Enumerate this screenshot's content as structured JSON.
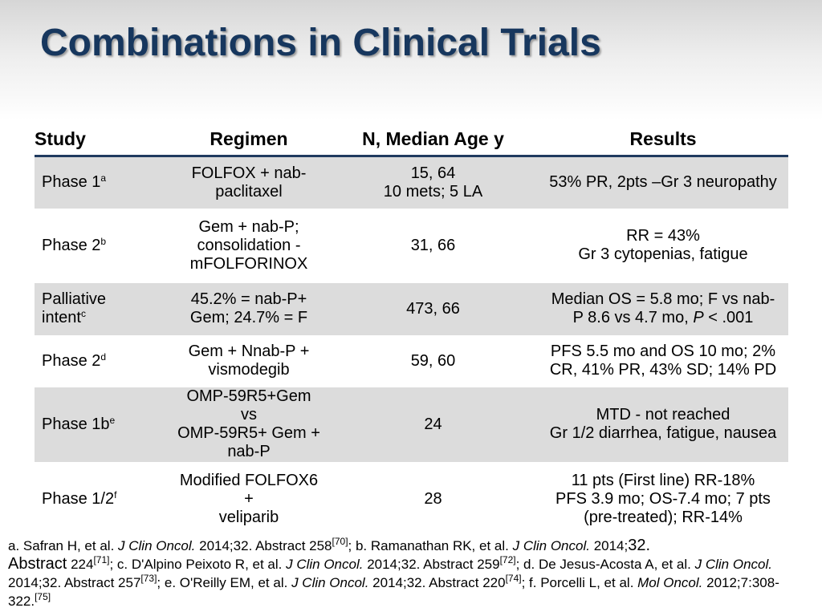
{
  "title": "Combinations in Clinical Trials",
  "table": {
    "headers": [
      "Study",
      "Regimen",
      "N, Median Age y",
      "Results"
    ],
    "rows": [
      {
        "study": "Phase 1",
        "sup": "a",
        "regimen": [
          "FOLFOX + nab-",
          "paclitaxel"
        ],
        "n": [
          "15, 64",
          "10 mets; 5 LA"
        ],
        "results": [
          "53% PR, 2pts –Gr 3 neuropathy"
        ],
        "height": 65,
        "shaded": true
      },
      {
        "study": "Phase 2",
        "sup": "b",
        "regimen": [
          "Gem + nab-P;",
          "consolidation -",
          "mFOLFORINOX"
        ],
        "n": [
          "31, 66"
        ],
        "results": [
          "RR = 43%",
          "Gr 3 cytopenias, fatigue"
        ],
        "height": 93,
        "shaded": false
      },
      {
        "study": [
          "Palliative",
          "intent"
        ],
        "sup": "c",
        "regimen": [
          "45.2% = nab-P+",
          "Gem; 24.7% = F"
        ],
        "n": [
          "473, 66"
        ],
        "results": [
          "Median OS = 5.8 mo; F vs nab-",
          "P 8.6 vs 4.7 mo, ",
          "P",
          " < .001"
        ],
        "height": 65,
        "shaded": true
      },
      {
        "study": "Phase 2",
        "sup": "d",
        "regimen": [
          "Gem + Nnab-P +",
          "vismodegib"
        ],
        "n": [
          "59, 60"
        ],
        "results": [
          "PFS 5.5 mo and OS 10 mo; 2%",
          "CR, 41% PR, 43% SD; 14% PD"
        ],
        "height": 65,
        "shaded": false
      },
      {
        "study": "Phase 1b",
        "sup": "e",
        "regimen": [
          "OMP-59R5+Gem vs",
          "OMP-59R5+ Gem +",
          "nab-P"
        ],
        "n": [
          "24"
        ],
        "results": [
          "MTD - not reached",
          "Gr 1/2 diarrhea, fatigue, nausea"
        ],
        "height": 93,
        "shaded": true
      },
      {
        "study": "Phase 1/2",
        "sup": "f",
        "regimen": [
          "Modified FOLFOX6 +",
          "veliparib"
        ],
        "n": [
          "28"
        ],
        "results": [
          "11 pts (First line) RR-18%",
          "PFS 3.9 mo; OS-7.4 mo; 7 pts",
          "(pre-treated); RR-14%"
        ],
        "height": 93,
        "shaded": false
      }
    ]
  },
  "references": {
    "a_text": "a. Safran H, et al. ",
    "a_journal": "J Clin Oncol.",
    "a_rest": " 2014;32. Abstract 258",
    "a_ref": "[70]",
    "b_text": "; b. Ramanathan RK, et al. ",
    "b_journal": "J Clin Oncol.",
    "b_rest1": " 2014;",
    "b_rest2": "32.",
    "b_abs": "Abstract",
    "b_rest3": " 224",
    "b_ref": "[71]",
    "c_text": "; c. D'Alpino Peixoto R, et al. ",
    "c_journal": "J Clin Oncol.",
    "c_rest": " 2014;32. Abstract 259",
    "c_ref": "[72]",
    "d_text": "; d. De Jesus-Acosta A, et al. ",
    "d_journal": "J Clin Oncol.",
    "d_rest": " 2014;32. Abstract 257",
    "d_ref": "[73]",
    "e_text": "; e. O'Reilly EM, et al. ",
    "e_journal": "J Clin Oncol.",
    "e_rest": " 2014;32. Abstract 220",
    "e_ref": "[74]",
    "f_text": "; f. Porcelli L, et al. ",
    "f_journal": "Mol Oncol.",
    "f_rest": " 2012;7:308-322.",
    "f_ref": "[75]"
  }
}
